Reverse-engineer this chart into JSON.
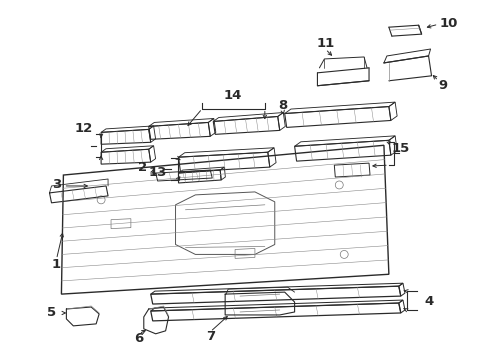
{
  "bg_color": "#ffffff",
  "line_color": "#2a2a2a",
  "fig_w": 4.89,
  "fig_h": 3.6,
  "dpi": 100,
  "font_size": 9.5
}
